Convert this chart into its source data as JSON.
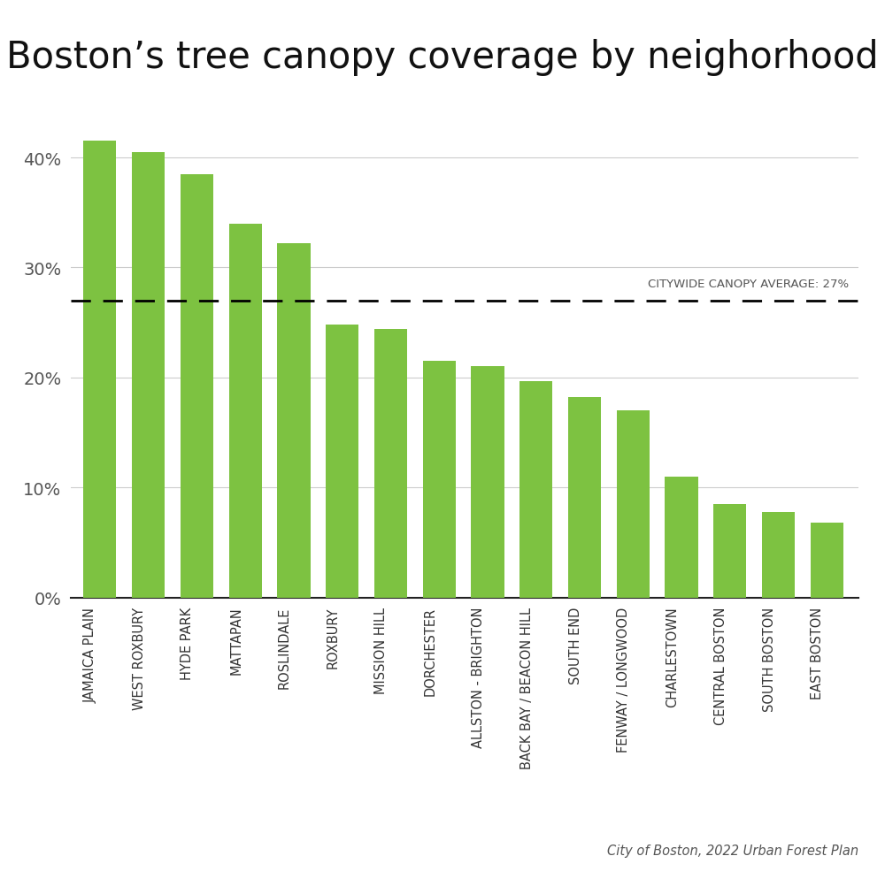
{
  "title": "Boston’s tree canopy coverage by neighorhood",
  "neighborhoods": [
    "JAMAICA PLAIN",
    "WEST ROXBURY",
    "HYDE PARK",
    "MATTAPAN",
    "ROSLINDALE",
    "ROXBURY",
    "MISSION HILL",
    "DORCHESTER",
    "ALLSTON - BRIGHTON",
    "BACK BAY / BEACON HILL",
    "SOUTH END",
    "FENWAY / LONGWOOD",
    "CHARLESTOWN",
    "CENTRAL BOSTON",
    "SOUTH BOSTON",
    "EAST BOSTON"
  ],
  "values": [
    41.5,
    40.5,
    38.5,
    34.0,
    32.2,
    24.8,
    24.4,
    21.5,
    21.0,
    19.7,
    18.2,
    17.0,
    11.0,
    8.5,
    7.8,
    6.8
  ],
  "bar_color": "#7DC241",
  "average_line": 27,
  "average_label": "CITYWIDE CANOPY AVERAGE: 27%",
  "yticks": [
    0,
    10,
    20,
    30,
    40
  ],
  "ytick_labels": [
    "0%",
    "10%",
    "20%",
    "30%",
    "40%"
  ],
  "ylim": [
    0,
    44
  ],
  "source_text": "City of Boston, 2022 Urban Forest Plan",
  "background_color": "#ffffff",
  "grid_color": "#cccccc",
  "title_fontsize": 30,
  "tick_fontsize": 14,
  "label_fontsize": 10.5
}
